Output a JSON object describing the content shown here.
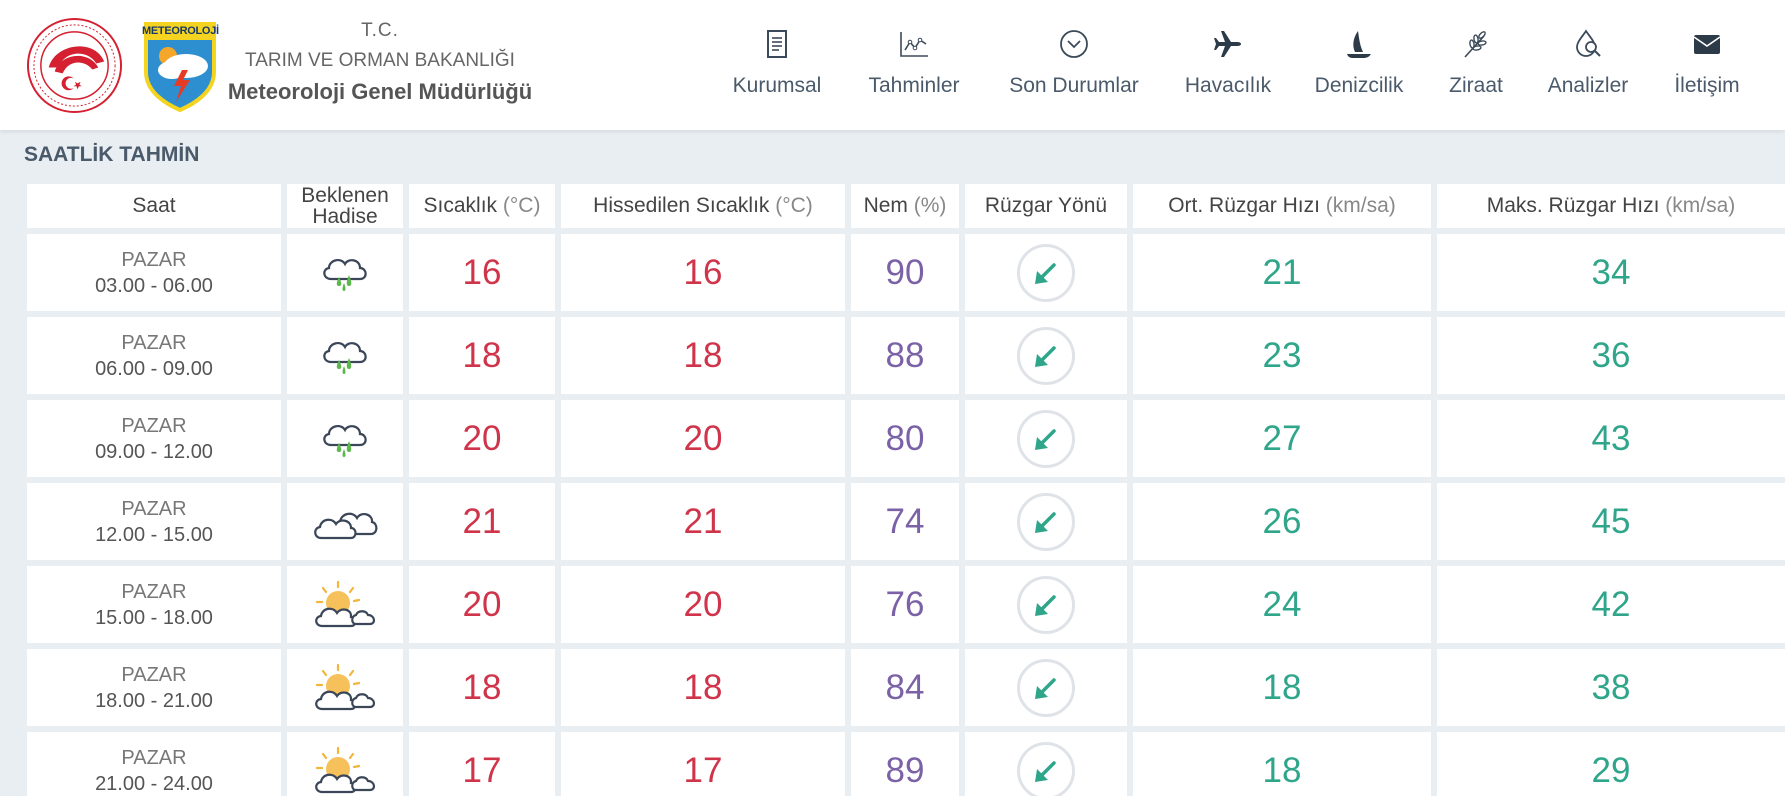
{
  "header": {
    "tc": "T.C.",
    "ministry": "TARIM VE ORMAN BAKANLIĞI",
    "mgm": "Meteoroloji Genel Müdürlüğü",
    "mgm_logo_text": "METEOROLOJİ",
    "nav": [
      {
        "label": "Kurumsal",
        "icon": "document-icon"
      },
      {
        "label": "Tahminler",
        "icon": "chart-icon"
      },
      {
        "label": "Son Durumlar",
        "icon": "chevron-circle-icon"
      },
      {
        "label": "Havacılık",
        "icon": "plane-icon"
      },
      {
        "label": "Denizcilik",
        "icon": "sail-icon"
      },
      {
        "label": "Ziraat",
        "icon": "wheat-icon"
      },
      {
        "label": "Analizler",
        "icon": "drop-search-icon"
      },
      {
        "label": "İletişim",
        "icon": "envelope-icon"
      }
    ]
  },
  "section_title": "SAATLİK TAHMİN",
  "table": {
    "headers": {
      "saat": "Saat",
      "hadise": "Beklenen Hadise",
      "sicaklik": "Sıcaklık",
      "sicaklik_unit": "(°C)",
      "hissedilen": "Hissedilen Sıcaklık",
      "hissedilen_unit": "(°C)",
      "nem": "Nem",
      "nem_unit": "(%)",
      "ruzgar_yonu": "Rüzgar Yönü",
      "ort_ruzgar": "Ort. Rüzgar Hızı",
      "ort_ruzgar_unit": "(km/sa)",
      "maks_ruzgar": "Maks. Rüzgar Hızı",
      "maks_ruzgar_unit": "(km/sa)"
    },
    "rows": [
      {
        "day": "PAZAR",
        "time": "03.00 - 06.00",
        "icon": "rain-cloud-icon",
        "temp": "16",
        "feels": "16",
        "humidity": "90",
        "wind_icon": "wind-direction-icon",
        "wind_avg": "21",
        "wind_max": "34"
      },
      {
        "day": "PAZAR",
        "time": "06.00 - 09.00",
        "icon": "rain-cloud-icon",
        "temp": "18",
        "feels": "18",
        "humidity": "88",
        "wind_icon": "wind-direction-icon",
        "wind_avg": "23",
        "wind_max": "36"
      },
      {
        "day": "PAZAR",
        "time": "09.00 - 12.00",
        "icon": "rain-cloud-icon",
        "temp": "20",
        "feels": "20",
        "humidity": "80",
        "wind_icon": "wind-direction-icon",
        "wind_avg": "27",
        "wind_max": "43"
      },
      {
        "day": "PAZAR",
        "time": "12.00 - 15.00",
        "icon": "cloudy-icon",
        "temp": "21",
        "feels": "21",
        "humidity": "74",
        "wind_icon": "wind-direction-icon",
        "wind_avg": "26",
        "wind_max": "45"
      },
      {
        "day": "PAZAR",
        "time": "15.00 - 18.00",
        "icon": "partly-cloudy-icon",
        "temp": "20",
        "feels": "20",
        "humidity": "76",
        "wind_icon": "wind-direction-icon",
        "wind_avg": "24",
        "wind_max": "42"
      },
      {
        "day": "PAZAR",
        "time": "18.00 - 21.00",
        "icon": "partly-cloudy-icon",
        "temp": "18",
        "feels": "18",
        "humidity": "84",
        "wind_icon": "wind-direction-icon",
        "wind_avg": "18",
        "wind_max": "38"
      },
      {
        "day": "PAZAR",
        "time": "21.00 - 24.00",
        "icon": "partly-cloudy-icon",
        "temp": "17",
        "feels": "17",
        "humidity": "89",
        "wind_icon": "wind-direction-icon",
        "wind_avg": "18",
        "wind_max": "29"
      }
    ]
  },
  "colors": {
    "temperature": "#d0344a",
    "humidity": "#7b62a6",
    "wind": "#2fa58a",
    "background": "#e8eef2"
  }
}
